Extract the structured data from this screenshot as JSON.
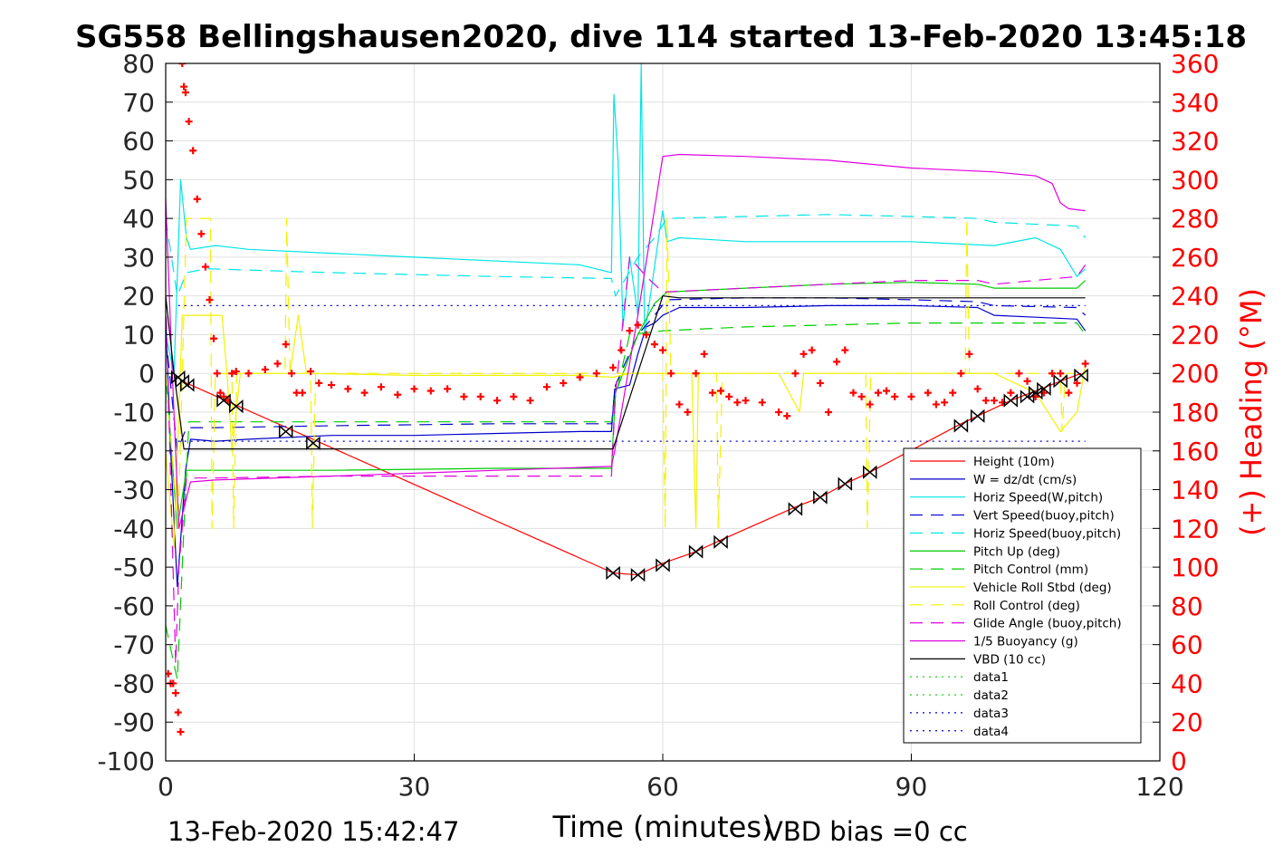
{
  "title": "SG558 Bellingshausen2020, dive 114 started 13-Feb-2020 13:45:18",
  "footer": {
    "timestamp": "13-Feb-2020 15:42:47",
    "vbd_bias": "VBD bias =0 cc"
  },
  "colors": {
    "height": "#ff0000",
    "w": "#0000cc",
    "horiz_speed": "#00e5e5",
    "pitch": "#00cc00",
    "roll": "#f2f200",
    "glide": "#e000e0",
    "vbd": "#000000",
    "heading": "#ff0000"
  },
  "chart_data": {
    "type": "line",
    "title": "SG558 Bellingshausen2020, dive 114 started 13-Feb-2020 13:45:18",
    "xlabel": "Time (minutes)",
    "ylabel_right": "(+) Heading (°M)",
    "xlim": [
      0,
      120
    ],
    "ylim": [
      -100,
      80
    ],
    "ylim_right": [
      0,
      360
    ],
    "x_ticks": [
      "0",
      "30",
      "60",
      "90",
      "120"
    ],
    "y_ticks": [
      "80",
      "70",
      "60",
      "50",
      "40",
      "30",
      "20",
      "10",
      "0",
      "-10",
      "-20",
      "-30",
      "-40",
      "-50",
      "-60",
      "-70",
      "-80",
      "-90",
      "-100"
    ],
    "y_ticks_right": [
      "360",
      "340",
      "320",
      "300",
      "280",
      "260",
      "240",
      "220",
      "200",
      "180",
      "160",
      "140",
      "120",
      "100",
      "80",
      "60",
      "40",
      "20",
      "0"
    ],
    "grid": true,
    "legend_position": "bottom-right",
    "legend": [
      {
        "label": "Height (10m)",
        "color": "#ff0000",
        "style": "solid"
      },
      {
        "label": "W = dz/dt (cm/s)",
        "color": "#0000cc",
        "style": "solid"
      },
      {
        "label": "Horiz Speed(W,pitch)",
        "color": "#00e5e5",
        "style": "solid"
      },
      {
        "label": "Vert Speed(buoy,pitch)",
        "color": "#0000cc",
        "style": "dashed"
      },
      {
        "label": "Horiz Speed(buoy,pitch)",
        "color": "#00e5e5",
        "style": "dashed"
      },
      {
        "label": "Pitch Up (deg)",
        "color": "#00cc00",
        "style": "solid"
      },
      {
        "label": "Pitch Control (mm)",
        "color": "#00cc00",
        "style": "dashed"
      },
      {
        "label": "Vehicle Roll Stbd (deg)",
        "color": "#f2f200",
        "style": "solid"
      },
      {
        "label": "Roll Control (deg)",
        "color": "#f2f200",
        "style": "dashed"
      },
      {
        "label": "Glide Angle (buoy,pitch)",
        "color": "#e000e0",
        "style": "dashed"
      },
      {
        "label": "1/5 Buoyancy (g)",
        "color": "#e000e0",
        "style": "solid"
      },
      {
        "label": "VBD (10 cc)",
        "color": "#000000",
        "style": "solid"
      },
      {
        "label": "data1",
        "color": "#00cc00",
        "style": "dotted"
      },
      {
        "label": "data2",
        "color": "#00cc00",
        "style": "dotted"
      },
      {
        "label": "data3",
        "color": "#0000cc",
        "style": "dotted"
      },
      {
        "label": "data4",
        "color": "#0000cc",
        "style": "dotted"
      }
    ],
    "series": [
      {
        "name": "Height (10m)",
        "color": "#ff0000",
        "style": "solid",
        "axis": "left",
        "x": [
          1.5,
          2,
          54,
          57,
          60,
          64,
          67,
          76,
          79,
          82,
          85,
          96,
          98,
          102,
          105,
          108,
          110.5
        ],
        "y": [
          -1,
          -2,
          -51.5,
          -52,
          -49,
          -46,
          -43,
          -34.5,
          -32,
          -28.5,
          -25.5,
          -13,
          -11,
          -7,
          -4.5,
          -2,
          0
        ]
      },
      {
        "name": "W = dz/dt (cm/s)",
        "color": "#0000cc",
        "style": "solid",
        "axis": "left",
        "x": [
          0,
          0.6,
          1.4,
          2.4,
          3,
          6,
          10,
          20,
          30,
          40,
          50,
          53.8,
          54.2,
          56,
          57,
          58,
          59,
          60,
          62,
          70,
          80,
          90,
          98,
          100,
          105,
          110,
          111
        ],
        "y": [
          15,
          -20,
          -55,
          -25,
          -17,
          -17.5,
          -17,
          -16,
          -16,
          -15.5,
          -15,
          -15,
          -4,
          -3,
          5,
          12,
          13,
          15,
          17,
          17,
          17.5,
          17.5,
          17,
          15,
          14.5,
          14,
          11
        ]
      },
      {
        "name": "Horiz Speed(W,pitch)",
        "color": "#00e5e5",
        "style": "solid",
        "axis": "left",
        "x": [
          0,
          1,
          1.8,
          2.5,
          3,
          6,
          10,
          20,
          30,
          40,
          50,
          53.8,
          54.1,
          54.6,
          55.2,
          56,
          57,
          57.4,
          57.8,
          58.5,
          59.5,
          60,
          60.5,
          62,
          70,
          80,
          90,
          100,
          105,
          108,
          110,
          111
        ],
        "y": [
          10,
          0,
          50,
          35,
          32,
          33,
          32,
          31,
          30,
          29,
          28,
          26,
          72,
          55,
          12,
          30,
          15,
          80,
          10,
          20,
          35,
          42,
          34,
          35,
          34,
          34,
          34,
          33,
          35,
          32,
          25,
          27
        ]
      },
      {
        "name": "Vert Speed(buoy,pitch)",
        "color": "#0000cc",
        "style": "dashed",
        "axis": "left",
        "x": [
          0,
          1.4,
          2.5,
          6,
          20,
          40,
          53.8,
          54.3,
          57,
          59,
          60.5,
          70,
          80,
          90,
          98,
          100,
          110,
          111
        ],
        "y": [
          10,
          -20,
          -14,
          -14,
          -13.5,
          -13,
          -13,
          -3,
          10,
          15,
          19,
          19.5,
          19.5,
          19,
          18.5,
          17.5,
          17,
          15
        ]
      },
      {
        "name": "Horiz Speed(buoy,pitch)",
        "color": "#00e5e5",
        "style": "dashed",
        "axis": "left",
        "x": [
          0,
          1.4,
          2.5,
          5,
          20,
          40,
          53.8,
          54.3,
          57,
          59,
          60.5,
          70,
          80,
          90,
          98,
          100,
          110,
          111
        ],
        "y": [
          40,
          20,
          26,
          27,
          26,
          25,
          24.5,
          20,
          30,
          35,
          40,
          40.5,
          41,
          40.5,
          40,
          39,
          38,
          35
        ]
      },
      {
        "name": "Pitch Up (deg)",
        "color": "#00cc00",
        "style": "solid",
        "axis": "left",
        "x": [
          0,
          1.4,
          2.5,
          6,
          20,
          40,
          53.8,
          54.3,
          57,
          59,
          60.5,
          70,
          80,
          90,
          98,
          100,
          110,
          111
        ],
        "y": [
          0,
          -40,
          -25,
          -25,
          -25,
          -24.5,
          -24.5,
          -5,
          10,
          18,
          21,
          22,
          23,
          23.5,
          23,
          22,
          22,
          24
        ]
      },
      {
        "name": "Pitch Control (mm)",
        "color": "#00cc00",
        "style": "dashed",
        "axis": "left",
        "x": [
          0,
          1.4,
          2.2,
          2.8,
          6,
          20,
          40,
          53.8,
          54.3,
          56,
          60,
          70,
          80,
          90,
          98,
          100,
          110,
          111
        ],
        "y": [
          -65,
          -79,
          -40,
          -12.5,
          -12.5,
          -12.5,
          -12.5,
          -12.5,
          -6,
          10,
          11,
          12,
          12.5,
          13,
          13,
          13,
          13,
          10
        ]
      },
      {
        "name": "Vehicle Roll Stbd (deg)",
        "color": "#f2f200",
        "style": "solid",
        "axis": "left",
        "x": [
          0,
          1,
          2,
          2.6,
          3,
          5,
          6.8,
          7.4,
          8,
          9,
          15,
          16,
          17,
          30,
          50,
          54,
          56,
          60,
          63.5,
          64,
          64.3,
          66,
          73,
          74,
          76.5,
          77,
          80,
          85,
          100,
          105,
          108,
          110,
          111
        ],
        "y": [
          -20,
          -45,
          15,
          15,
          15,
          15,
          15,
          0,
          -20,
          0,
          0,
          15,
          0,
          -0.5,
          -0.5,
          -1,
          0,
          0,
          0,
          -40,
          0,
          0,
          0,
          0,
          -10,
          0,
          0,
          0,
          0,
          -5,
          -15,
          -10,
          2
        ]
      },
      {
        "name": "Roll Control (deg)",
        "color": "#f2f200",
        "style": "dashed",
        "axis": "left",
        "x": [
          0,
          1.5,
          2.5,
          4,
          5.4,
          5.6,
          6,
          8,
          8.2,
          8.6,
          9,
          14.4,
          14.6,
          15,
          17.5,
          17.7,
          18.1,
          18.5,
          30,
          50,
          54,
          60,
          60.3,
          60.5,
          61,
          62,
          66.5,
          66.7,
          67.2,
          67.6,
          70,
          84.5,
          84.7,
          85.1,
          85.5,
          96.5,
          96.7,
          97,
          97.5,
          108,
          108.2,
          108.6,
          109,
          111
        ],
        "y": [
          0,
          -40,
          40,
          40,
          40,
          -40,
          0,
          0,
          -40,
          0,
          0,
          0,
          40,
          0,
          0,
          -40,
          0,
          0,
          0,
          0,
          0,
          0,
          -40,
          40,
          0,
          0,
          0,
          -40,
          0,
          0,
          0,
          0,
          -40,
          0,
          0,
          0,
          40,
          0,
          0,
          0,
          -15,
          0,
          0,
          0
        ]
      },
      {
        "name": "Glide Angle (buoy,pitch)",
        "color": "#e000e0",
        "style": "dashed",
        "axis": "left",
        "x": [
          0,
          1.2,
          1.6,
          2.5,
          6,
          20,
          40,
          53.8,
          54.3,
          56,
          58,
          60,
          70,
          80,
          90,
          98,
          100,
          110,
          111
        ],
        "y": [
          20,
          -75,
          -50,
          -27,
          -27,
          -26.5,
          -26.5,
          -26.5,
          -5,
          30,
          25,
          21,
          22,
          23,
          24,
          24,
          23,
          25,
          28
        ]
      },
      {
        "name": "1/5 Buoyancy (g)",
        "color": "#e000e0",
        "style": "solid",
        "axis": "left",
        "x": [
          0,
          0.8,
          1.6,
          3,
          6,
          20,
          40,
          53.8,
          54.2,
          57,
          60,
          62,
          70,
          80,
          90,
          100,
          105,
          107,
          108,
          109,
          111
        ],
        "y": [
          45,
          0,
          -40,
          -28,
          -27.5,
          -26.5,
          -25,
          -24,
          -20,
          15,
          56,
          56.5,
          56,
          55,
          53,
          52,
          51,
          49,
          44,
          42.5,
          42
        ]
      },
      {
        "name": "VBD (10 cc)",
        "color": "#000000",
        "style": "solid",
        "axis": "left",
        "x": [
          0,
          1,
          2.2,
          3,
          10,
          30,
          50,
          54,
          60,
          62,
          80,
          98,
          98.5,
          111
        ],
        "y": [
          20,
          0,
          -19.5,
          -19.5,
          -19.5,
          -19.5,
          -19.5,
          -19.5,
          20,
          19.5,
          19.5,
          19.5,
          19.5,
          19.5
        ]
      },
      {
        "name": "data3",
        "color": "#0000cc",
        "style": "dotted",
        "axis": "left",
        "x": [
          1.5,
          111
        ],
        "y": [
          17.5,
          17.5
        ]
      },
      {
        "name": "data4",
        "color": "#0000cc",
        "style": "dotted",
        "axis": "left",
        "x": [
          1.5,
          111
        ],
        "y": [
          -17.5,
          -17.5
        ]
      }
    ],
    "heading": {
      "name": "Heading",
      "color": "#ff0000",
      "axis": "right",
      "marker": "+",
      "x": [
        0.3,
        0.6,
        0.9,
        1.2,
        1.5,
        1.8,
        2,
        2.2,
        2.4,
        2.8,
        3.3,
        3.8,
        4.3,
        4.8,
        5.3,
        5.8,
        6.2,
        6.6,
        7,
        7.5,
        8,
        8.5,
        10,
        12,
        13.5,
        14.5,
        15.2,
        15.8,
        16.5,
        17.5,
        18.5,
        20,
        22,
        24,
        26,
        28,
        30,
        32,
        34,
        36,
        38,
        40,
        42,
        44,
        46,
        48,
        50,
        52,
        54,
        55,
        56,
        57,
        58,
        59,
        60,
        61,
        62,
        63,
        64,
        65,
        66,
        67,
        68,
        69,
        70,
        72,
        74,
        75,
        76,
        77,
        78,
        79,
        80,
        81,
        82,
        83,
        84,
        85,
        86,
        87,
        88,
        90,
        92,
        93,
        94,
        95,
        96,
        97,
        98,
        99,
        100,
        101,
        102,
        103,
        104,
        105,
        106,
        107,
        108,
        109,
        110,
        111
      ],
      "y": [
        45,
        40,
        40,
        35,
        25,
        15,
        360,
        348,
        345,
        330,
        315,
        290,
        272,
        255,
        238,
        218,
        200,
        190,
        188,
        186,
        200,
        201,
        200,
        202,
        205,
        215,
        200,
        190,
        190,
        201,
        195,
        194,
        192,
        190,
        193,
        189,
        192,
        191,
        192,
        188,
        188,
        186,
        188,
        186,
        193,
        195,
        198,
        200,
        203,
        212,
        222,
        225,
        220,
        215,
        212,
        200,
        184,
        180,
        200,
        210,
        190,
        191,
        188,
        185,
        186,
        185,
        180,
        178,
        200,
        210,
        212,
        195,
        180,
        206,
        212,
        190,
        188,
        184,
        190,
        191,
        188,
        188,
        190,
        184,
        185,
        190,
        200,
        210,
        192,
        186,
        186,
        185,
        190,
        200,
        196,
        188,
        190,
        200,
        200,
        190,
        195,
        205
      ]
    },
    "markers_height_triangles": {
      "x": [
        1.5,
        2,
        2.6,
        7,
        8.5,
        14.5,
        17.8,
        54,
        57,
        60,
        64,
        67,
        76,
        79,
        82,
        85,
        96,
        98,
        102,
        104,
        105,
        106,
        108,
        110.5
      ],
      "y": [
        -1,
        -2,
        -3,
        -7,
        -8.5,
        -15,
        -18,
        -51.5,
        -52,
        -49.5,
        -46,
        -43.5,
        -35,
        -32,
        -28.5,
        -25.5,
        -13.5,
        -11,
        -7,
        -6,
        -5,
        -4,
        -2,
        -0.5
      ]
    }
  }
}
